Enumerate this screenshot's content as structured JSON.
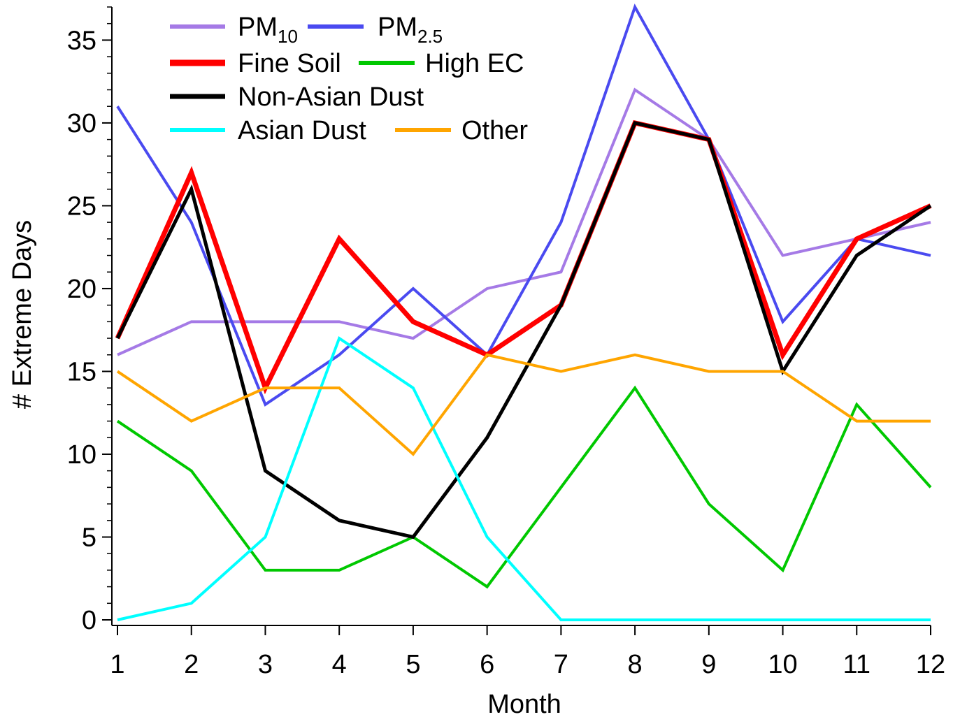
{
  "chart_data": {
    "type": "line",
    "title": "",
    "xlabel": "Month",
    "ylabel": "# Extreme Days",
    "x": [
      1,
      2,
      3,
      4,
      5,
      6,
      7,
      8,
      9,
      10,
      11,
      12
    ],
    "xlim": [
      1,
      12
    ],
    "ylim": [
      0,
      37
    ],
    "yticks": [
      0,
      5,
      10,
      15,
      20,
      25,
      30,
      35
    ],
    "grid": false,
    "legend_position": "top-left",
    "series": [
      {
        "name": "PM10",
        "label_base": "PM",
        "label_sub": "10",
        "color": "#A57AE6",
        "values": [
          16,
          18,
          18,
          18,
          17,
          20,
          21,
          32,
          29,
          22,
          23,
          24
        ]
      },
      {
        "name": "PM2.5",
        "label_base": "PM",
        "label_sub": "2.5",
        "color": "#4A4AF0",
        "values": [
          31,
          24,
          13,
          16,
          20,
          16,
          24,
          37,
          29,
          18,
          23,
          22
        ]
      },
      {
        "name": "Fine Soil",
        "label_base": "Fine Soil",
        "label_sub": "",
        "color": "#FF0000",
        "values": [
          17,
          27,
          14,
          23,
          18,
          16,
          19,
          30,
          29,
          16,
          23,
          25
        ]
      },
      {
        "name": "High EC",
        "label_base": "High EC",
        "label_sub": "",
        "color": "#00C800",
        "values": [
          12,
          9,
          3,
          3,
          5,
          2,
          8,
          14,
          7,
          3,
          13,
          8
        ]
      },
      {
        "name": "Non-Asian Dust",
        "label_base": "Non-Asian Dust",
        "label_sub": "",
        "color": "#000000",
        "values": [
          17,
          26,
          9,
          6,
          5,
          11,
          19,
          30,
          29,
          15,
          22,
          25
        ]
      },
      {
        "name": "Asian Dust",
        "label_base": "Asian Dust",
        "label_sub": "",
        "color": "#00FFFF",
        "values": [
          0,
          1,
          5,
          17,
          14,
          5,
          0,
          0,
          0,
          0,
          0,
          0
        ]
      },
      {
        "name": "Other",
        "label_base": "Other",
        "label_sub": "",
        "color": "#FFA500",
        "values": [
          15,
          12,
          14,
          14,
          10,
          16,
          15,
          16,
          15,
          15,
          12,
          12
        ]
      }
    ]
  }
}
